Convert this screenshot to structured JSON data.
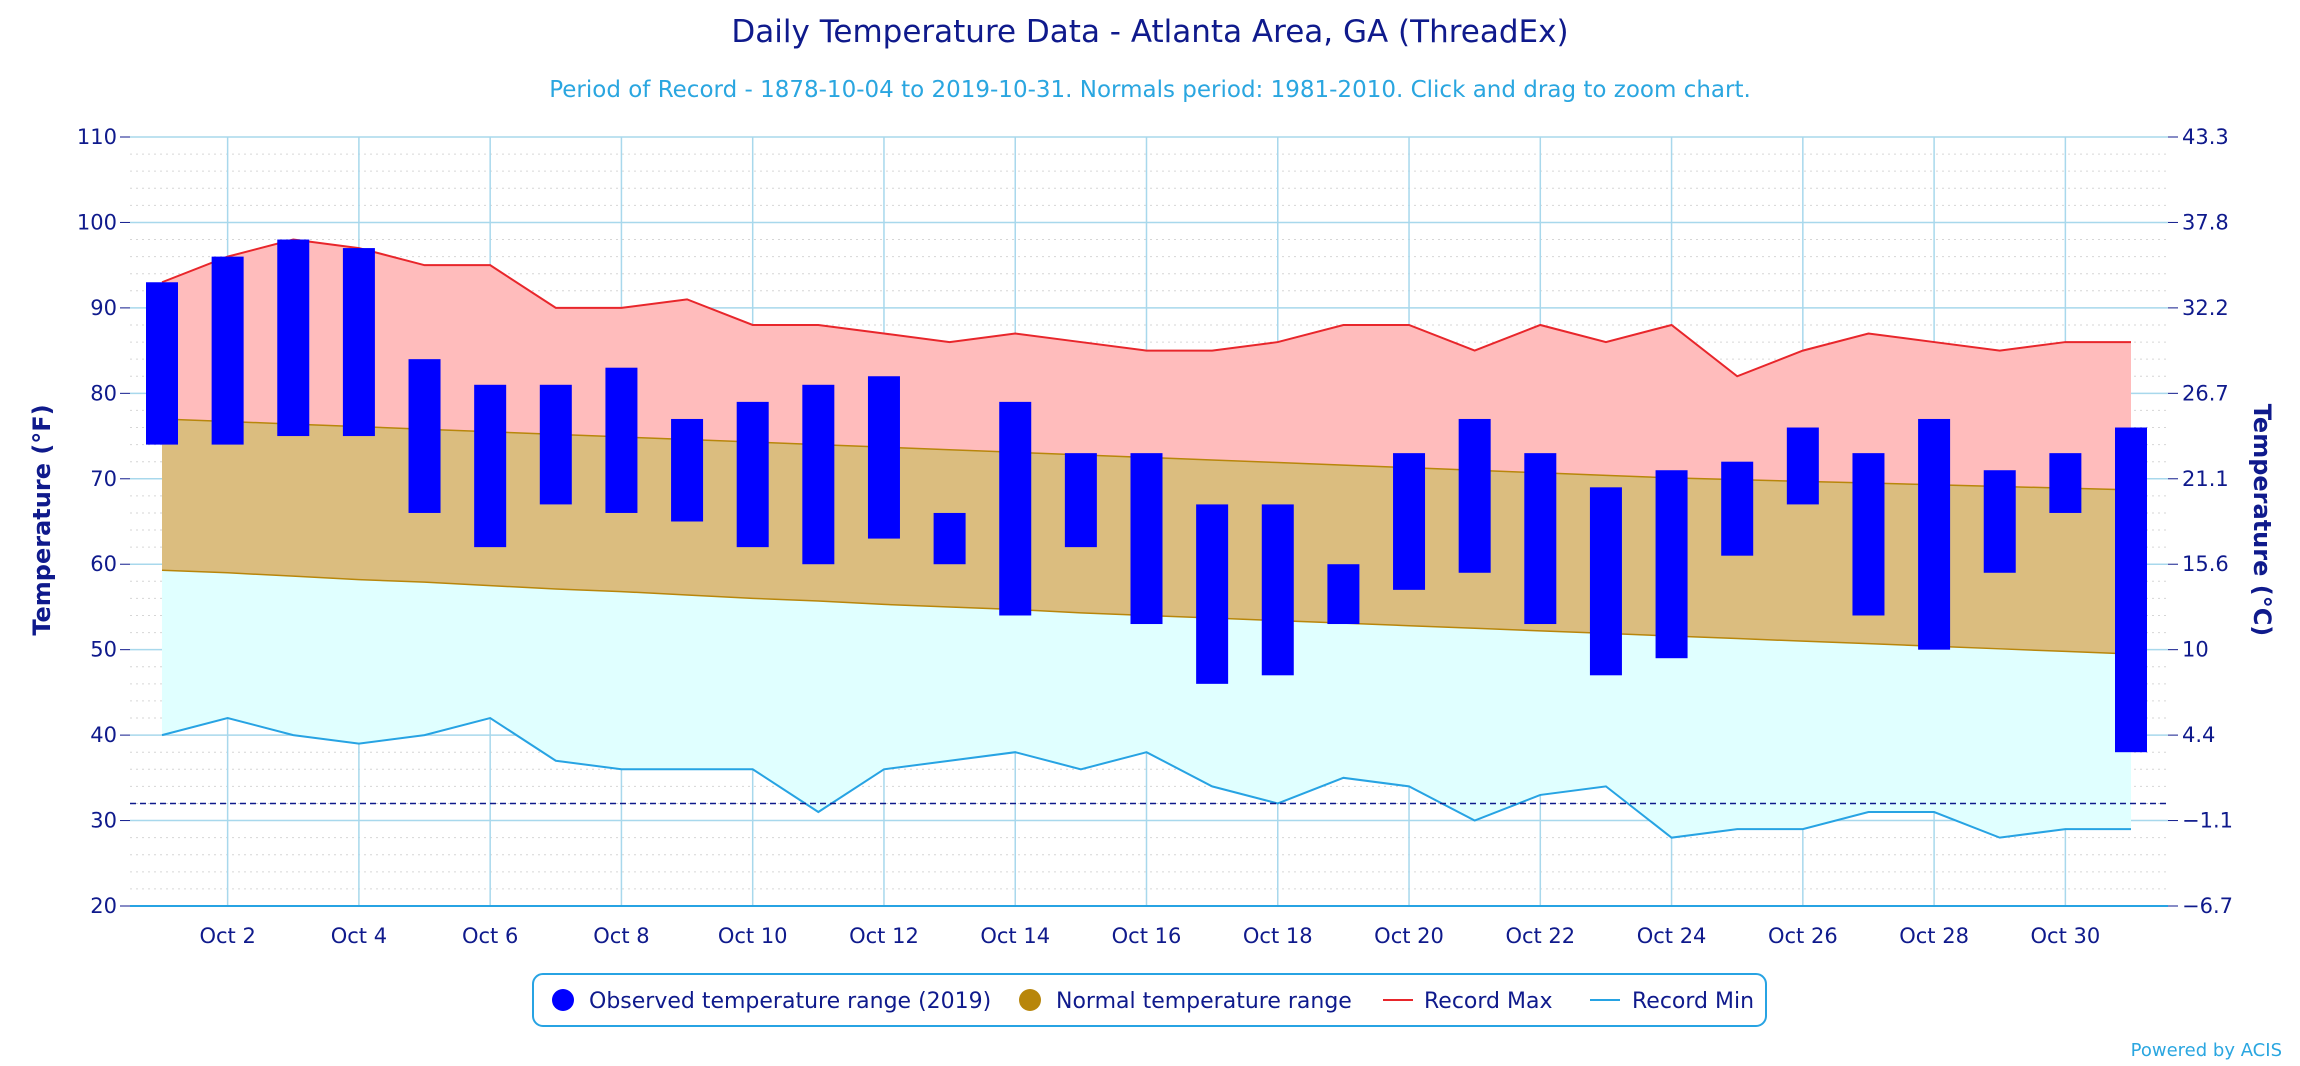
{
  "chart_data": {
    "type": "bar",
    "title": "Daily Temperature Data - Atlanta Area, GA (ThreadEx)",
    "subtitle": "Period of Record - 1878-10-04 to 2019-10-31. Normals period: 1981-2010. Click and drag to zoom chart.",
    "ylabel_left": "Temperature (°F)",
    "ylabel_right": "Temperature (°C)",
    "ylim": [
      20,
      110
    ],
    "yticks_left": [
      "20",
      "30",
      "40",
      "50",
      "60",
      "70",
      "80",
      "90",
      "100",
      "110"
    ],
    "yticks_right": [
      "−6.7",
      "−1.1",
      "4.4",
      "10",
      "15.6",
      "21.1",
      "26.7",
      "32.2",
      "37.8",
      "43.3"
    ],
    "xlim": [
      1,
      31
    ],
    "x_tick_days": [
      2,
      4,
      6,
      8,
      10,
      12,
      14,
      16,
      18,
      20,
      22,
      24,
      26,
      28,
      30
    ],
    "x_tick_labels": [
      "Oct 2",
      "Oct 4",
      "Oct 6",
      "Oct 8",
      "Oct 10",
      "Oct 12",
      "Oct 14",
      "Oct 16",
      "Oct 18",
      "Oct 20",
      "Oct 22",
      "Oct 24",
      "Oct 26",
      "Oct 28",
      "Oct 30"
    ],
    "freezing_line_f": 32,
    "days": [
      1,
      2,
      3,
      4,
      5,
      6,
      7,
      8,
      9,
      10,
      11,
      12,
      13,
      14,
      15,
      16,
      17,
      18,
      19,
      20,
      21,
      22,
      23,
      24,
      25,
      26,
      27,
      28,
      29,
      30,
      31
    ],
    "series": [
      {
        "name": "Observed temperature range (2019)",
        "color": "#0000ff",
        "low": [
          74,
          74,
          75,
          75,
          66,
          62,
          67,
          66,
          65,
          62,
          60,
          63,
          60,
          54,
          62,
          53,
          46,
          47,
          53,
          57,
          59,
          53,
          47,
          49,
          61,
          67,
          54,
          50,
          59,
          66,
          38
        ],
        "high": [
          93,
          96,
          98,
          97,
          84,
          81,
          81,
          83,
          77,
          79,
          81,
          82,
          66,
          79,
          73,
          73,
          67,
          67,
          60,
          73,
          77,
          73,
          69,
          71,
          72,
          76,
          73,
          77,
          71,
          73,
          76
        ]
      },
      {
        "name": "Normal temperature range",
        "color": "#b8860b",
        "fill": "#dbbd7f",
        "low": [
          59.3,
          59.0,
          58.6,
          58.2,
          57.9,
          57.5,
          57.1,
          56.8,
          56.4,
          56.0,
          55.7,
          55.3,
          55.0,
          54.7,
          54.3,
          54.0,
          53.7,
          53.4,
          53.1,
          52.8,
          52.5,
          52.2,
          51.9,
          51.6,
          51.3,
          51.0,
          50.7,
          50.4,
          50.1,
          49.8,
          49.5
        ],
        "high": [
          77.0,
          76.7,
          76.4,
          76.1,
          75.8,
          75.5,
          75.2,
          74.9,
          74.6,
          74.3,
          74.0,
          73.7,
          73.4,
          73.1,
          72.8,
          72.5,
          72.2,
          71.9,
          71.6,
          71.3,
          71.0,
          70.7,
          70.4,
          70.1,
          69.9,
          69.7,
          69.5,
          69.3,
          69.1,
          68.9,
          68.7
        ]
      },
      {
        "name": "Record Max",
        "color": "#e8262b",
        "fill": "#ffbcbc",
        "values": [
          93,
          96,
          98,
          97,
          95,
          95,
          90,
          90,
          91,
          88,
          88,
          87,
          86,
          87,
          86,
          85,
          85,
          86,
          88,
          88,
          85,
          88,
          86,
          88,
          82,
          85,
          87,
          86,
          85,
          86,
          86
        ]
      },
      {
        "name": "Record Min",
        "color": "#27a3e3",
        "fill": "#e0ffff",
        "values": [
          40,
          42,
          40,
          39,
          40,
          42,
          37,
          36,
          36,
          36,
          31,
          36,
          37,
          38,
          36,
          38,
          34,
          32,
          35,
          34,
          30,
          33,
          34,
          28,
          29,
          29,
          31,
          31,
          28,
          29,
          29
        ]
      }
    ],
    "legend": {
      "placement": "bottom-center",
      "items": [
        {
          "label": "Observed temperature range (2019)",
          "marker": "circle",
          "color": "#0000ff"
        },
        {
          "label": "Normal temperature range",
          "marker": "circle",
          "color": "#b8860b"
        },
        {
          "label": "Record Max",
          "marker": "line",
          "color": "#e8262b"
        },
        {
          "label": "Record Min",
          "marker": "line",
          "color": "#27a3e3"
        }
      ]
    },
    "credits": "Powered by ACIS",
    "grid": true
  }
}
